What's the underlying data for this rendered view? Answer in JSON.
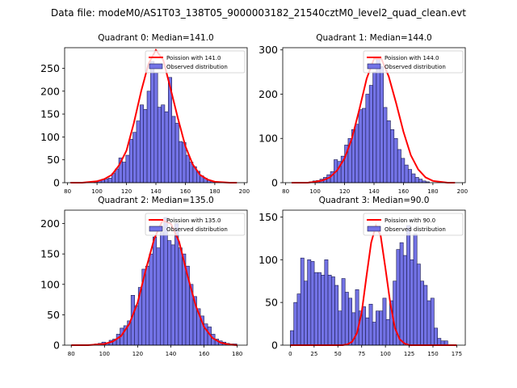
{
  "figure": {
    "suptitle": "Data file: modeM0/AS1T03_138T05_9000003182_21540cztM0_level2_quad_clean.evt"
  },
  "chart_data": [
    {
      "type": "bar",
      "title": "Quadrant 0: Median=141.0",
      "xlim": [
        78,
        202
      ],
      "ylim": [
        0,
        295
      ],
      "xticks": [
        80,
        100,
        120,
        140,
        160,
        180,
        200
      ],
      "yticks": [
        0,
        50,
        100,
        150,
        200,
        250
      ],
      "legend": {
        "placement": "top-right",
        "entries": [
          "Poission with 141.0",
          "Observed distribution"
        ]
      },
      "bins": {
        "start": 98,
        "width": 2.4
      },
      "hist": [
        3,
        5,
        6,
        8,
        10,
        20,
        30,
        54,
        45,
        60,
        95,
        110,
        135,
        170,
        160,
        200,
        265,
        240,
        165,
        170,
        155,
        230,
        145,
        130,
        90,
        88,
        60,
        45,
        35,
        25,
        15,
        10,
        5,
        3
      ],
      "poisson": {
        "mu": 141.0,
        "x": [
          82,
          90,
          100,
          105,
          110,
          115,
          120,
          125,
          130,
          135,
          140,
          145,
          150,
          155,
          160,
          165,
          170,
          175,
          180,
          190,
          195
        ],
        "y": [
          0,
          0,
          3,
          8,
          17,
          38,
          70,
          130,
          200,
          260,
          290,
          268,
          205,
          140,
          80,
          40,
          17,
          7,
          2,
          0,
          0
        ]
      }
    },
    {
      "type": "bar",
      "title": "Quadrant 1: Median=144.0",
      "xlim": [
        78,
        202
      ],
      "ylim": [
        0,
        305
      ],
      "xticks": [
        80,
        100,
        120,
        140,
        160,
        180,
        200
      ],
      "yticks": [
        0,
        100,
        200,
        300
      ],
      "legend": {
        "placement": "top-right",
        "entries": [
          "Poission with 144.0",
          "Observed distribution"
        ]
      },
      "bins": {
        "start": 96,
        "width": 2.4
      },
      "hist": [
        2,
        4,
        5,
        8,
        12,
        18,
        25,
        52,
        48,
        60,
        85,
        100,
        120,
        132,
        165,
        168,
        200,
        220,
        250,
        280,
        262,
        170,
        140,
        120,
        100,
        75,
        55,
        40,
        30,
        20,
        12,
        8,
        4,
        2
      ],
      "poisson": {
        "mu": 144.0,
        "x": [
          84,
          95,
          100,
          105,
          110,
          115,
          120,
          125,
          130,
          135,
          140,
          145,
          150,
          155,
          160,
          165,
          170,
          175,
          180,
          190,
          195
        ],
        "y": [
          0,
          0,
          2,
          5,
          12,
          28,
          55,
          100,
          165,
          235,
          280,
          280,
          240,
          180,
          115,
          62,
          30,
          12,
          4,
          0,
          0
        ]
      }
    },
    {
      "type": "bar",
      "title": "Quadrant 2: Median=135.0",
      "xlim": [
        76,
        186
      ],
      "ylim": [
        0,
        222
      ],
      "xticks": [
        80,
        100,
        120,
        140,
        160,
        180
      ],
      "yticks": [
        0,
        50,
        100,
        150,
        200
      ],
      "legend": {
        "placement": "top-right",
        "entries": [
          "Poission with 135.0",
          "Observed distribution"
        ]
      },
      "bins": {
        "start": 94,
        "width": 2.2
      },
      "hist": [
        2,
        3,
        5,
        4,
        8,
        10,
        18,
        28,
        32,
        40,
        82,
        65,
        95,
        125,
        130,
        150,
        178,
        160,
        185,
        210,
        172,
        165,
        200,
        160,
        150,
        130,
        100,
        80,
        60,
        48,
        35,
        30,
        18,
        10,
        7,
        5,
        3,
        2,
        2
      ],
      "poisson": {
        "mu": 135.0,
        "x": [
          80,
          90,
          100,
          105,
          110,
          115,
          120,
          125,
          130,
          135,
          140,
          145,
          150,
          155,
          160,
          165,
          170,
          175,
          180
        ],
        "y": [
          0,
          0,
          2,
          6,
          15,
          35,
          70,
          125,
          175,
          205,
          200,
          170,
          115,
          65,
          30,
          12,
          4,
          1,
          0
        ]
      }
    },
    {
      "type": "bar",
      "title": "Quadrant 3: Median=90.0",
      "xlim": [
        -8,
        184
      ],
      "ylim": [
        0,
        158
      ],
      "xticks": [
        0,
        25,
        50,
        75,
        100,
        125,
        150,
        175
      ],
      "yticks": [
        0,
        50,
        100,
        150
      ],
      "legend": {
        "placement": "top-right",
        "entries": [
          "Poission with 90.0",
          "Observed distribution"
        ]
      },
      "bins": {
        "start": 0,
        "width": 3.6
      },
      "hist": [
        17,
        50,
        60,
        102,
        75,
        100,
        98,
        85,
        85,
        82,
        100,
        82,
        80,
        70,
        40,
        78,
        62,
        55,
        38,
        65,
        40,
        45,
        32,
        48,
        27,
        40,
        40,
        55,
        30,
        52,
        75,
        112,
        120,
        105,
        140,
        100,
        130,
        95,
        75,
        70,
        52,
        55,
        20,
        8,
        5,
        5
      ],
      "poisson": {
        "mu": 90.0,
        "x": [
          0,
          55,
          60,
          65,
          70,
          75,
          80,
          85,
          90,
          95,
          100,
          105,
          110,
          115,
          120,
          125,
          175
        ],
        "y": [
          0,
          0,
          1,
          4,
          14,
          38,
          80,
          120,
          140,
          128,
          90,
          50,
          20,
          7,
          2,
          0,
          0
        ]
      }
    }
  ],
  "style": {
    "bar_fill": "#7373e6",
    "bar_edge": "#1a1a4d",
    "line_color": "#ff0000"
  }
}
